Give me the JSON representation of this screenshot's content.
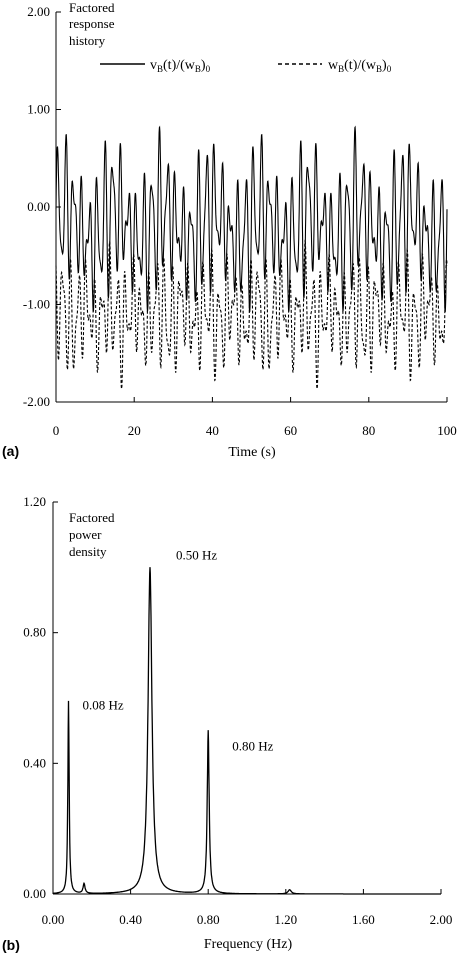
{
  "chart_data": [
    {
      "type": "line",
      "panel_label": "(a)",
      "annotation_lines": [
        "Factored",
        "response",
        "history"
      ],
      "xlabel": "Time (s)",
      "ylabel": "",
      "xlim": [
        0,
        100
      ],
      "ylim": [
        -2.0,
        2.0
      ],
      "x_ticks": [
        0,
        20,
        40,
        60,
        80,
        100
      ],
      "x_tick_labels": [
        "0",
        "20",
        "40",
        "60",
        "80",
        "100"
      ],
      "y_ticks": [
        -2.0,
        -1.0,
        0.0,
        1.0,
        2.0
      ],
      "y_tick_labels": [
        "-2.00",
        "-1.00",
        "0.00",
        "1.00",
        "2.00"
      ],
      "grid": false,
      "legend_position": "top-right",
      "series": [
        {
          "name": "v_B(t)/(w_B)_0",
          "legend": {
            "a": "v",
            "b": "B",
            "c": "(t)/(w",
            "d": "B",
            "e": ")",
            "f": "0"
          },
          "style": "solid",
          "description": "oscillation about -0.2 with peaks near 0.8-1.1 and troughs near -0.5 to -1.1",
          "mean": -0.2,
          "peaks": [
            0.6,
            1.07,
            0.9,
            0.95,
            1.1,
            0.85,
            1.0,
            0.95,
            1.0,
            1.1,
            0.85,
            1.13,
            0.9,
            1.0,
            0.95,
            1.05,
            0.9,
            1.08,
            0.95,
            1.0,
            0.9,
            0.85,
            1.0,
            1.05,
            0.9,
            0.95,
            0.9,
            0.6
          ]
        },
        {
          "name": "w_B(t)/(w_B)_0",
          "legend": {
            "a": "w",
            "b": "B",
            "c": "(t)/(w",
            "d": "B",
            "e": ")",
            "f": "0"
          },
          "style": "dashed",
          "description": "oscillation about -1.1 with peaks near -0.3 to -0.5 and troughs near -1.5 to -1.9",
          "mean": -1.1,
          "troughs": [
            -1.4,
            -1.7,
            -1.9,
            -1.6,
            -1.75,
            -1.5,
            -1.8,
            -1.6,
            -1.85,
            -1.7,
            -1.55,
            -1.9,
            -1.65,
            -1.8,
            -1.7,
            -1.6,
            -1.85,
            -1.5,
            -1.75,
            -1.7,
            -1.8,
            -1.6
          ]
        }
      ]
    },
    {
      "type": "line",
      "panel_label": "(b)",
      "annotation_lines": [
        "Factored",
        "power",
        "density"
      ],
      "xlabel": "Frequency (Hz)",
      "ylabel": "",
      "xlim": [
        0.0,
        2.0
      ],
      "ylim": [
        0.0,
        1.2
      ],
      "x_ticks": [
        0.0,
        0.4,
        0.8,
        1.2,
        1.6,
        2.0
      ],
      "x_tick_labels": [
        "0.00",
        "0.40",
        "0.80",
        "1.20",
        "1.60",
        "2.00"
      ],
      "y_ticks": [
        0.0,
        0.4,
        0.8,
        1.2
      ],
      "y_tick_labels": [
        "0.00",
        "0.40",
        "0.80",
        "1.20"
      ],
      "grid": false,
      "peaks": [
        {
          "x": 0.08,
          "y": 0.59,
          "label": "0.08 Hz"
        },
        {
          "x": 0.16,
          "y": 0.03,
          "label": ""
        },
        {
          "x": 0.5,
          "y": 1.0,
          "label": "0.50 Hz"
        },
        {
          "x": 0.8,
          "y": 0.5,
          "label": "0.80 Hz"
        },
        {
          "x": 1.22,
          "y": 0.015,
          "label": ""
        }
      ]
    }
  ]
}
